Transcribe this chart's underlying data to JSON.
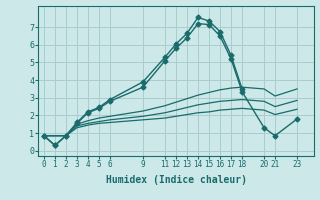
{
  "xlabel": "Humidex (Indice chaleur)",
  "background_color": "#cce8e8",
  "grid_color": "#aacccc",
  "line_color": "#1a6b6b",
  "xticks": [
    0,
    1,
    2,
    3,
    4,
    5,
    6,
    9,
    11,
    12,
    13,
    14,
    15,
    16,
    17,
    18,
    20,
    21,
    23
  ],
  "yticks": [
    0,
    1,
    2,
    3,
    4,
    5,
    6,
    7
  ],
  "xlim": [
    -0.5,
    24.5
  ],
  "ylim": [
    -0.3,
    8.2
  ],
  "series": [
    {
      "x": [
        0,
        1,
        2,
        3,
        4,
        5,
        6,
        9,
        11,
        12,
        13,
        14,
        15,
        16,
        17,
        18
      ],
      "y": [
        0.85,
        0.3,
        0.85,
        1.6,
        2.2,
        2.45,
        2.9,
        3.9,
        5.3,
        6.05,
        6.65,
        7.55,
        7.35,
        6.75,
        5.4,
        3.5
      ],
      "marker": "D",
      "markersize": 2.5,
      "linewidth": 1.0,
      "has_marker": true
    },
    {
      "x": [
        0,
        1,
        2,
        3,
        4,
        5,
        6,
        9,
        11,
        12,
        13,
        14,
        15,
        16,
        17,
        18,
        20,
        21,
        23
      ],
      "y": [
        0.85,
        0.3,
        0.85,
        1.55,
        2.15,
        2.4,
        2.8,
        3.6,
        5.1,
        5.8,
        6.4,
        7.2,
        7.15,
        6.5,
        5.2,
        3.35,
        1.3,
        0.85,
        1.8
      ],
      "marker": "D",
      "markersize": 2.5,
      "linewidth": 1.0,
      "has_marker": true
    },
    {
      "x": [
        0,
        2,
        3,
        4,
        5,
        6,
        9,
        11,
        12,
        13,
        14,
        15,
        16,
        17,
        18,
        20,
        21,
        23
      ],
      "y": [
        0.85,
        0.85,
        1.5,
        1.7,
        1.85,
        1.95,
        2.25,
        2.55,
        2.75,
        2.95,
        3.15,
        3.3,
        3.45,
        3.55,
        3.6,
        3.5,
        3.1,
        3.5
      ],
      "marker": null,
      "markersize": 0,
      "linewidth": 0.9,
      "has_marker": false
    },
    {
      "x": [
        0,
        2,
        3,
        4,
        5,
        6,
        9,
        11,
        12,
        13,
        14,
        15,
        16,
        17,
        18,
        20,
        21,
        23
      ],
      "y": [
        0.85,
        0.85,
        1.4,
        1.55,
        1.65,
        1.75,
        1.95,
        2.15,
        2.3,
        2.45,
        2.6,
        2.7,
        2.8,
        2.85,
        2.9,
        2.8,
        2.5,
        2.85
      ],
      "marker": null,
      "markersize": 0,
      "linewidth": 0.9,
      "has_marker": false
    },
    {
      "x": [
        0,
        2,
        3,
        4,
        5,
        6,
        9,
        11,
        12,
        13,
        14,
        15,
        16,
        17,
        18,
        20,
        21,
        23
      ],
      "y": [
        0.85,
        0.85,
        1.3,
        1.45,
        1.55,
        1.6,
        1.75,
        1.85,
        1.95,
        2.05,
        2.15,
        2.2,
        2.3,
        2.35,
        2.4,
        2.3,
        2.05,
        2.35
      ],
      "marker": null,
      "markersize": 0,
      "linewidth": 0.9,
      "has_marker": false
    }
  ]
}
